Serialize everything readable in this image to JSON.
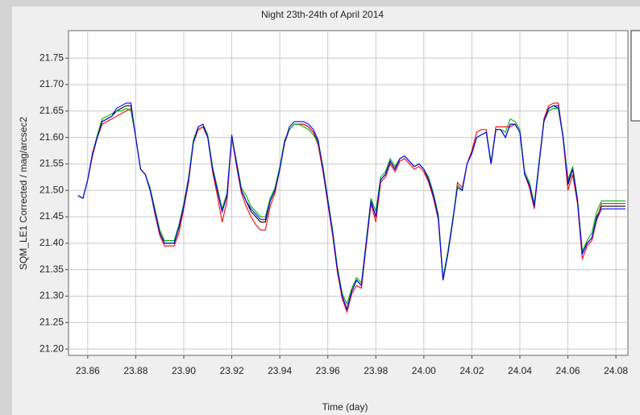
{
  "chart_data": {
    "type": "line",
    "title": "Night 23th-24th of April 2014",
    "x_label": "Time (day)",
    "y_label": "SQM_LE1 Corrected / mag/arcsec2",
    "xlim": [
      23.852,
      24.085
    ],
    "ylim": [
      21.188,
      21.802
    ],
    "xticks": [
      23.86,
      23.88,
      {
        "value": 23.9,
        "label": "23.90"
      },
      23.92,
      23.94,
      23.96,
      23.98,
      {
        "value": 24.0,
        "label": "24.00"
      },
      24.02,
      24.04,
      24.06,
      24.08
    ],
    "yticks": [
      {
        "value": 21.2,
        "label": "21.20"
      },
      21.25,
      {
        "value": 21.3,
        "label": "21.30"
      },
      21.35,
      {
        "value": 21.4,
        "label": "21.40"
      },
      21.45,
      {
        "value": 21.5,
        "label": "21.50"
      },
      21.55,
      {
        "value": 21.6,
        "label": "21.60"
      },
      21.65,
      {
        "value": 21.7,
        "label": "21.70"
      },
      21.75
    ],
    "grid": true,
    "x": [
      23.856,
      23.858,
      23.86,
      23.862,
      23.864,
      23.866,
      23.868,
      23.87,
      23.872,
      23.874,
      23.876,
      23.878,
      23.88,
      23.882,
      23.884,
      23.886,
      23.888,
      23.89,
      23.892,
      23.894,
      23.896,
      23.898,
      23.9,
      23.902,
      23.904,
      23.906,
      23.908,
      23.91,
      23.912,
      23.914,
      23.916,
      23.918,
      23.92,
      23.922,
      23.924,
      23.926,
      23.928,
      23.93,
      23.932,
      23.934,
      23.936,
      23.938,
      23.94,
      23.942,
      23.944,
      23.946,
      23.948,
      23.95,
      23.952,
      23.954,
      23.956,
      23.958,
      23.96,
      23.962,
      23.964,
      23.966,
      23.968,
      23.97,
      23.972,
      23.974,
      23.976,
      23.978,
      23.98,
      23.982,
      23.984,
      23.986,
      23.988,
      23.99,
      23.992,
      23.994,
      23.996,
      23.998,
      24.0,
      24.002,
      24.004,
      24.006,
      24.008,
      24.01,
      24.012,
      24.014,
      24.016,
      24.018,
      24.02,
      24.022,
      24.024,
      24.026,
      24.028,
      24.03,
      24.032,
      24.034,
      24.036,
      24.038,
      24.04,
      24.042,
      24.044,
      24.046,
      24.048,
      24.05,
      24.052,
      24.054,
      24.056,
      24.058,
      24.06,
      24.062,
      24.064,
      24.066,
      24.068,
      24.07,
      24.072,
      24.074,
      24.08,
      24.084
    ],
    "series": [
      {
        "color": "#000000",
        "values": [
          21.49,
          21.485,
          21.52,
          21.57,
          21.6,
          21.63,
          21.635,
          21.64,
          21.65,
          21.655,
          21.66,
          21.66,
          21.6,
          21.54,
          21.53,
          21.5,
          21.46,
          21.42,
          21.4,
          21.4,
          21.4,
          21.43,
          21.47,
          21.52,
          21.59,
          21.615,
          21.62,
          21.6,
          21.54,
          21.5,
          21.46,
          21.49,
          21.6,
          21.55,
          21.5,
          21.48,
          21.46,
          21.45,
          21.44,
          21.44,
          21.48,
          21.5,
          21.54,
          21.59,
          21.615,
          21.625,
          21.625,
          21.625,
          21.62,
          21.61,
          21.59,
          21.54,
          21.48,
          21.42,
          21.35,
          21.3,
          21.275,
          21.31,
          21.33,
          21.32,
          21.4,
          21.48,
          21.45,
          21.52,
          21.53,
          21.555,
          21.54,
          21.56,
          21.565,
          21.555,
          21.545,
          21.55,
          21.54,
          21.52,
          21.49,
          21.45,
          21.33,
          21.38,
          21.44,
          21.51,
          21.5,
          21.55,
          21.57,
          21.6,
          21.605,
          21.61,
          21.55,
          21.615,
          21.615,
          21.6,
          21.625,
          21.625,
          21.61,
          21.53,
          21.51,
          21.47,
          21.55,
          21.63,
          21.655,
          21.66,
          21.655,
          21.6,
          21.51,
          21.54,
          21.48,
          21.38,
          21.4,
          21.41,
          21.45,
          21.47,
          21.47,
          21.47
        ]
      },
      {
        "color": "#ff0000",
        "values": [
          21.49,
          21.485,
          21.52,
          21.565,
          21.6,
          21.625,
          21.63,
          21.635,
          21.64,
          21.645,
          21.65,
          21.655,
          21.6,
          21.54,
          21.53,
          21.5,
          21.455,
          21.415,
          21.395,
          21.395,
          21.395,
          21.42,
          21.465,
          21.515,
          21.59,
          21.615,
          21.62,
          21.6,
          21.535,
          21.49,
          21.44,
          21.48,
          21.6,
          21.545,
          21.495,
          21.47,
          21.45,
          21.435,
          21.425,
          21.425,
          21.47,
          21.495,
          21.54,
          21.59,
          21.615,
          21.625,
          21.625,
          21.625,
          21.62,
          21.61,
          21.585,
          21.535,
          21.475,
          21.415,
          21.345,
          21.295,
          21.27,
          21.305,
          21.32,
          21.315,
          21.395,
          21.475,
          21.44,
          21.515,
          21.525,
          21.55,
          21.535,
          21.555,
          21.56,
          21.55,
          21.54,
          21.545,
          21.535,
          21.515,
          21.485,
          21.445,
          21.33,
          21.38,
          21.44,
          21.515,
          21.505,
          21.55,
          21.575,
          21.61,
          21.615,
          21.615,
          21.55,
          21.62,
          21.62,
          21.62,
          21.62,
          21.625,
          21.61,
          21.53,
          21.505,
          21.465,
          21.55,
          21.635,
          21.66,
          21.665,
          21.665,
          21.6,
          21.5,
          21.53,
          21.475,
          21.37,
          21.395,
          21.405,
          21.445,
          21.475,
          21.475,
          21.475
        ]
      },
      {
        "color": "#00b000",
        "values": [
          21.49,
          21.485,
          21.52,
          21.57,
          21.605,
          21.635,
          21.64,
          21.645,
          21.65,
          21.65,
          21.655,
          21.65,
          21.6,
          21.54,
          21.53,
          21.505,
          21.465,
          21.425,
          21.405,
          21.405,
          21.405,
          21.435,
          21.475,
          21.525,
          21.595,
          21.62,
          21.625,
          21.605,
          21.545,
          21.505,
          21.465,
          21.495,
          21.6,
          21.555,
          21.505,
          21.49,
          21.47,
          21.46,
          21.45,
          21.45,
          21.485,
          21.505,
          21.545,
          21.595,
          21.615,
          21.625,
          21.625,
          21.62,
          21.615,
          21.605,
          21.59,
          21.545,
          21.485,
          21.425,
          21.355,
          21.305,
          21.285,
          21.315,
          21.335,
          21.325,
          21.405,
          21.485,
          21.46,
          21.525,
          21.535,
          21.56,
          21.545,
          21.56,
          21.565,
          21.555,
          21.545,
          21.55,
          21.54,
          21.525,
          21.495,
          21.455,
          21.335,
          21.385,
          21.445,
          21.51,
          21.5,
          21.55,
          21.57,
          21.6,
          21.605,
          21.61,
          21.555,
          21.615,
          21.615,
          21.61,
          21.635,
          21.63,
          21.615,
          21.535,
          21.515,
          21.475,
          21.555,
          21.63,
          21.65,
          21.655,
          21.655,
          21.605,
          21.52,
          21.545,
          21.485,
          21.385,
          21.405,
          21.42,
          21.46,
          21.48,
          21.48,
          21.48
        ]
      },
      {
        "color": "#0000ff",
        "values": [
          21.49,
          21.485,
          21.52,
          21.57,
          21.6,
          21.63,
          21.635,
          21.64,
          21.655,
          21.66,
          21.665,
          21.665,
          21.6,
          21.54,
          21.53,
          21.5,
          21.46,
          21.42,
          21.4,
          21.4,
          21.4,
          21.43,
          21.47,
          21.52,
          21.59,
          21.62,
          21.625,
          21.6,
          21.54,
          21.5,
          21.46,
          21.49,
          21.605,
          21.55,
          21.5,
          21.48,
          21.465,
          21.455,
          21.445,
          21.445,
          21.48,
          21.5,
          21.54,
          21.59,
          21.62,
          21.63,
          21.63,
          21.63,
          21.625,
          21.615,
          21.595,
          21.54,
          21.48,
          21.42,
          21.35,
          21.3,
          21.275,
          21.31,
          21.33,
          21.32,
          21.4,
          21.48,
          21.45,
          21.52,
          21.53,
          21.555,
          21.54,
          21.56,
          21.565,
          21.555,
          21.545,
          21.55,
          21.54,
          21.52,
          21.49,
          21.45,
          21.33,
          21.38,
          21.44,
          21.505,
          21.5,
          21.55,
          21.57,
          21.6,
          21.605,
          21.61,
          21.55,
          21.615,
          21.615,
          21.6,
          21.625,
          21.625,
          21.61,
          21.53,
          21.51,
          21.47,
          21.55,
          21.63,
          21.655,
          21.66,
          21.66,
          21.6,
          21.515,
          21.54,
          21.48,
          21.38,
          21.4,
          21.41,
          21.445,
          21.465,
          21.465,
          21.465
        ]
      }
    ]
  }
}
